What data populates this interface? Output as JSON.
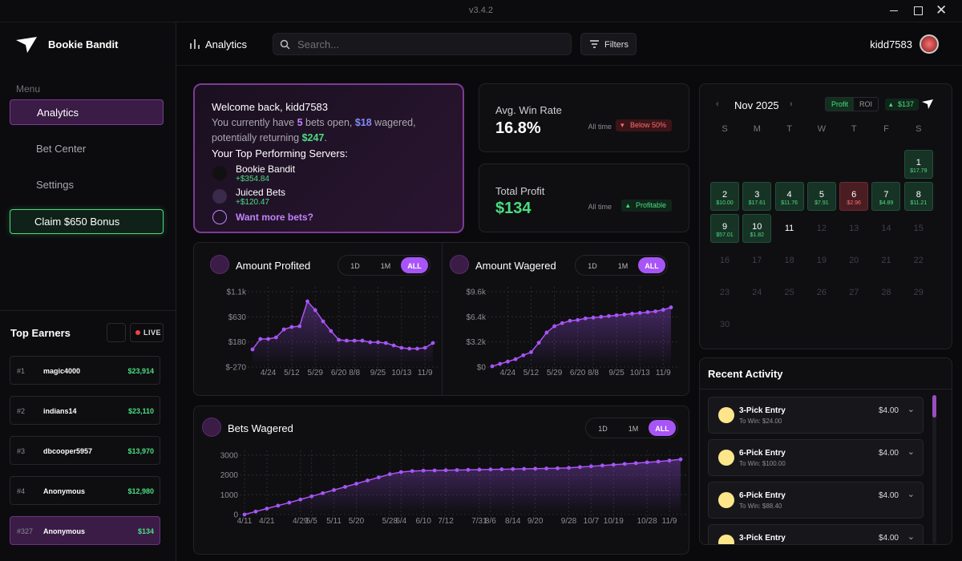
{
  "window": {
    "version": "v3.4.2"
  },
  "sidebar": {
    "brand": "Bookie Bandit",
    "menu_title": "Menu",
    "nav": [
      "Analytics",
      "Bet Center",
      "Settings"
    ],
    "bonus": "Claim $650 Bonus",
    "top_earners": {
      "title": "Top Earners",
      "live": "LIVE",
      "rows": [
        {
          "rank": "#1",
          "name": "magic4000",
          "amount": "$23,914"
        },
        {
          "rank": "#2",
          "name": "indians14",
          "amount": "$23,110"
        },
        {
          "rank": "#3",
          "name": "dbcooper5957",
          "amount": "$13,970"
        },
        {
          "rank": "#4",
          "name": "Anonymous",
          "amount": "$12,980"
        },
        {
          "rank": "#327",
          "name": "Anonymous",
          "amount": "$134"
        }
      ]
    }
  },
  "header": {
    "title": "Analytics",
    "search_placeholder": "Search...",
    "filters": "Filters",
    "username": "kidd7583"
  },
  "welcome": {
    "greeting": "Welcome back, kidd7583",
    "summary": [
      "You currently have ",
      "5",
      " bets open, ",
      "$18",
      " wagered, potentially returning ",
      "$247",
      "."
    ],
    "servers_title": "Your Top Performing Servers:",
    "servers": [
      {
        "name": "Bookie Bandit",
        "profit": "+$354.84"
      },
      {
        "name": "Juiced Bets",
        "profit": "+$120.47"
      }
    ],
    "more": "Want more bets?"
  },
  "stats": [
    {
      "label": "Avg. Win Rate",
      "value": "16.8%",
      "period": "All time",
      "badge": "Below 50%"
    },
    {
      "label": "Total Profit",
      "value": "$134",
      "period": "All time",
      "badge": "Profitable"
    }
  ],
  "calendar": {
    "month": "Nov 2025",
    "toggles": [
      "Profit",
      "ROI"
    ],
    "badge": "$137",
    "weekdays": [
      "S",
      "M",
      "T",
      "W",
      "T",
      "F",
      "S"
    ],
    "days": [
      {
        "day": 1,
        "amount": "$17.79"
      },
      {
        "day": 2,
        "amount": "$10.00"
      },
      {
        "day": 3,
        "amount": "$17.61"
      },
      {
        "day": 4,
        "amount": "$11.76"
      },
      {
        "day": 5,
        "amount": "$7.91"
      },
      {
        "day": 6,
        "amount": "$2.96",
        "color": "#4a1d22"
      },
      {
        "day": 7,
        "amount": "$4.89"
      },
      {
        "day": 8,
        "amount": "$11.21"
      },
      {
        "day": 9,
        "amount": "$57.01"
      },
      {
        "day": 10,
        "amount": "$1.82"
      },
      {
        "day": 11
      },
      {
        "day": 12
      },
      {
        "day": 13
      },
      {
        "day": 14
      },
      {
        "day": 15
      },
      {
        "day": 16
      },
      {
        "day": 17
      },
      {
        "day": 18
      },
      {
        "day": 19
      },
      {
        "day": 20
      },
      {
        "day": 21
      },
      {
        "day": 22
      },
      {
        "day": 23
      },
      {
        "day": 24
      },
      {
        "day": 25
      },
      {
        "day": 26
      },
      {
        "day": 27
      },
      {
        "day": 28
      },
      {
        "day": 29
      },
      {
        "day": 30
      }
    ]
  },
  "recent_activity": {
    "title": "Recent Activity",
    "items": [
      {
        "title": "3-Pick Entry",
        "to_win": "To Win: $24.00",
        "amount": "$4.00"
      },
      {
        "title": "6-Pick Entry",
        "to_win": "To Win: $100.00",
        "amount": "$4.00"
      },
      {
        "title": "6-Pick Entry",
        "to_win": "To Win: $88.40",
        "amount": "$4.00"
      },
      {
        "title": "3-Pick Entry",
        "to_win": "To Win: $24.00",
        "amount": "$4.00"
      }
    ]
  },
  "chart_data": [
    {
      "type": "line",
      "title": "Amount Profited",
      "ranges": [
        "1D",
        "1M",
        "ALL"
      ],
      "color": "#a855f7",
      "grid": true,
      "categories": [
        null,
        null,
        "4/24",
        null,
        null,
        "5/12",
        null,
        null,
        "5/29",
        null,
        null,
        "6/20",
        null,
        "8/8",
        null,
        null,
        "9/25",
        null,
        null,
        "10/13",
        null,
        null,
        "11/9",
        null
      ],
      "values": [
        46,
        233,
        233,
        261,
        405,
        448,
        462,
        907,
        750,
        549,
        376,
        218,
        204,
        204,
        204,
        175,
        175,
        161,
        118,
        75,
        60,
        60,
        75,
        161
      ],
      "ylim": [
        -270,
        1080
      ],
      "yticks": [
        {
          "value": -270,
          "label": "$-270"
        },
        {
          "value": 180,
          "label": "$180"
        },
        {
          "value": 630,
          "label": "$630"
        },
        {
          "value": 1080,
          "label": "$1.1k"
        }
      ]
    },
    {
      "type": "line",
      "title": "Amount Wagered",
      "ranges": [
        "1D",
        "1M",
        "ALL"
      ],
      "color": "#a855f7",
      "grid": true,
      "categories": [
        null,
        null,
        "4/24",
        null,
        null,
        "5/12",
        null,
        null,
        "5/29",
        null,
        null,
        "6/20",
        null,
        "8/8",
        null,
        null,
        "9/25",
        null,
        null,
        "10/13",
        null,
        null,
        "11/9",
        null
      ],
      "values": [
        100,
        400,
        700,
        1000,
        1500,
        1900,
        3100,
        4400,
        5200,
        5600,
        5900,
        6000,
        6200,
        6300,
        6400,
        6500,
        6600,
        6700,
        6800,
        6900,
        7000,
        7100,
        7300,
        7600
      ],
      "ylim": [
        0,
        9600
      ],
      "yticks": [
        {
          "value": 0,
          "label": "$0"
        },
        {
          "value": 3200,
          "label": "$3.2k"
        },
        {
          "value": 6400,
          "label": "$6.4k"
        },
        {
          "value": 9600,
          "label": "$9.6k"
        }
      ]
    },
    {
      "type": "line",
      "title": "Bets Wagered",
      "ranges": [
        "1D",
        "1M",
        "ALL"
      ],
      "color": "#a855f7",
      "grid": true,
      "categories": [
        "4/11",
        null,
        "4/21",
        null,
        null,
        "4/29",
        "5/5",
        null,
        "5/11",
        null,
        "5/20",
        null,
        null,
        "5/28",
        "6/4",
        null,
        "6/10",
        null,
        "7/12",
        null,
        null,
        "7/31",
        "8/6",
        null,
        "8/14",
        null,
        "9/20",
        null,
        null,
        "9/28",
        null,
        "10/7",
        null,
        "10/19",
        null,
        null,
        "10/28",
        null,
        "11/9",
        null
      ],
      "values": [
        0,
        150,
        300,
        450,
        600,
        760,
        920,
        1080,
        1240,
        1400,
        1560,
        1720,
        1880,
        2040,
        2150,
        2200,
        2220,
        2230,
        2240,
        2250,
        2260,
        2270,
        2280,
        2290,
        2300,
        2310,
        2320,
        2330,
        2340,
        2360,
        2400,
        2440,
        2480,
        2520,
        2560,
        2600,
        2640,
        2680,
        2730,
        2790
      ],
      "ylim": [
        0,
        3000
      ],
      "yticks": [
        0,
        1000,
        2000,
        3000
      ]
    }
  ]
}
